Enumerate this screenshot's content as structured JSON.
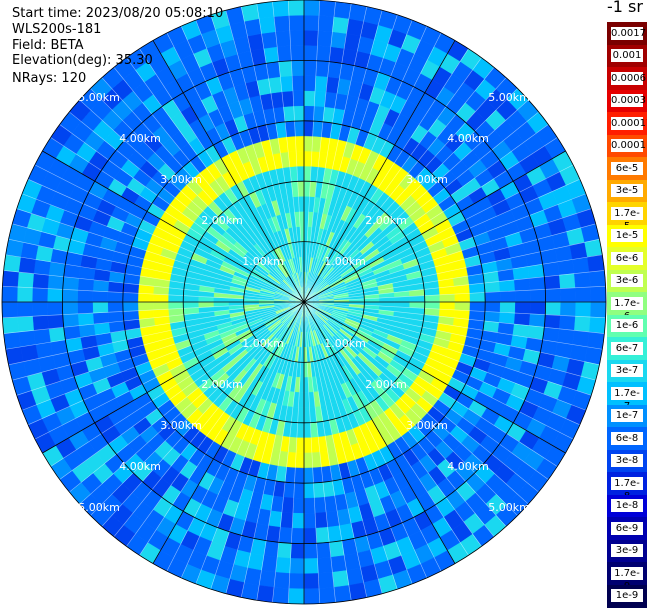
{
  "header": {
    "start_time": "Start time: 2023/08/20 05:08:10",
    "instrument": "WLS200s-181",
    "field": "Field: BETA",
    "elevation": "Elevation(deg): 35.30",
    "nrays": "NRays: 120"
  },
  "units": "-1 sr",
  "colorbar": {
    "labels": [
      "0.0017",
      "0.001",
      "0.0006",
      "0.0003",
      "0.00017",
      "0.0001",
      "6e-5",
      "3e-5",
      "1.7e-5",
      "1e-5",
      "6e-6",
      "3e-6",
      "1.7e-6",
      "1e-6",
      "6e-7",
      "3e-7",
      "1.7e-7",
      "1e-7",
      "6e-8",
      "3e-8",
      "1.7e-8",
      "1e-8",
      "6e-9",
      "3e-9",
      "1.7e-9",
      "1e-9"
    ],
    "colors": [
      "#7a0000",
      "#a00000",
      "#c80000",
      "#e60000",
      "#ff1e00",
      "#ff4a00",
      "#ff7a00",
      "#ffaa00",
      "#ffd400",
      "#ffff00",
      "#e4ff2a",
      "#c0ff50",
      "#90ff80",
      "#60ffb0",
      "#35f0d8",
      "#1ad8f0",
      "#00c0ff",
      "#0090ff",
      "#0066ff",
      "#0044f0",
      "#0022e0",
      "#0000d8",
      "#0000b0",
      "#000090",
      "#000070",
      "#000050"
    ]
  },
  "chart_data": {
    "type": "heatmap",
    "projection": "polar PPI scan",
    "field": "BETA",
    "elevation_deg": 35.3,
    "nrays": 120,
    "max_range_km": 5.0,
    "range_rings_km": [
      1.0,
      2.0,
      3.0,
      4.0,
      5.0
    ],
    "ring_labels": {
      "1.00km": "1.00km",
      "2.00km": "2.00km",
      "3.00km": "3.00km",
      "4.00km": "4.00km",
      "5.00km": "5.00km"
    },
    "color_scale": "log",
    "value_range": [
      1e-09,
      0.0017
    ],
    "features": {
      "bright_ring_range_km": [
        2.35,
        2.75
      ],
      "bright_ring_level": "1e-5",
      "inner_level": "3e-7",
      "outer_level": "6e-8"
    }
  }
}
